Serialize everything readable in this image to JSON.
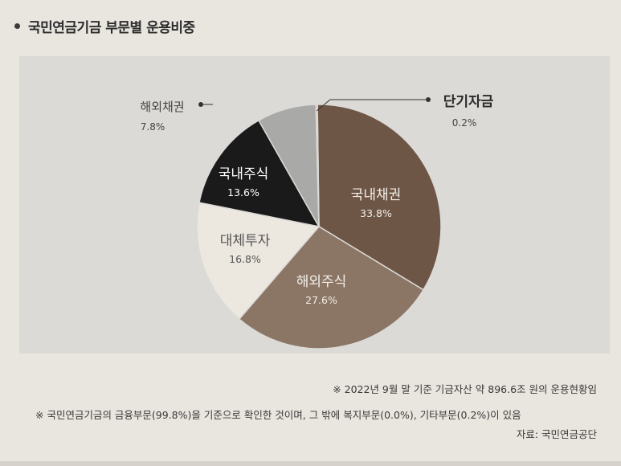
{
  "title": "국민연금기금 부문별 운용비중",
  "colors": {
    "panel_bg": "#dcdad6",
    "domestic_bond": "#6e5646",
    "foreign_equity": "#8b7666",
    "alternative": "#ece7df",
    "domestic_equity": "#1b1a1a",
    "foreign_bond": "#a9a9a7",
    "short_term": "#c8b9ad"
  },
  "chart_data": {
    "type": "pie",
    "title": "국민연금기금 부문별 운용비중",
    "unit": "%",
    "slices": [
      {
        "label": "국내채권",
        "value": 33.8,
        "value_text": "33.8%",
        "color": "#6e5646"
      },
      {
        "label": "해외주식",
        "value": 27.6,
        "value_text": "27.6%",
        "color": "#8b7666"
      },
      {
        "label": "대체투자",
        "value": 16.8,
        "value_text": "16.8%",
        "color": "#ece7df"
      },
      {
        "label": "국내주식",
        "value": 13.6,
        "value_text": "13.6%",
        "color": "#1b1a1a"
      },
      {
        "label": "해외채권",
        "value": 7.8,
        "value_text": "7.8%",
        "color": "#a9a9a7"
      },
      {
        "label": "단기자금",
        "value": 0.2,
        "value_text": "0.2%",
        "color": "#c8b9ad"
      }
    ]
  },
  "notes": {
    "note1": "※ 2022년 9월 말 기준 기금자산 약 896.6조 원의 운용현황임",
    "note2": "※ 국민연금기금의 금융부문(99.8%)을 기준으로 확인한 것이며, 그 밖에 복지부문(0.0%), 기타부문(0.2%)이 있음",
    "source": "자료: 국민연금공단"
  }
}
